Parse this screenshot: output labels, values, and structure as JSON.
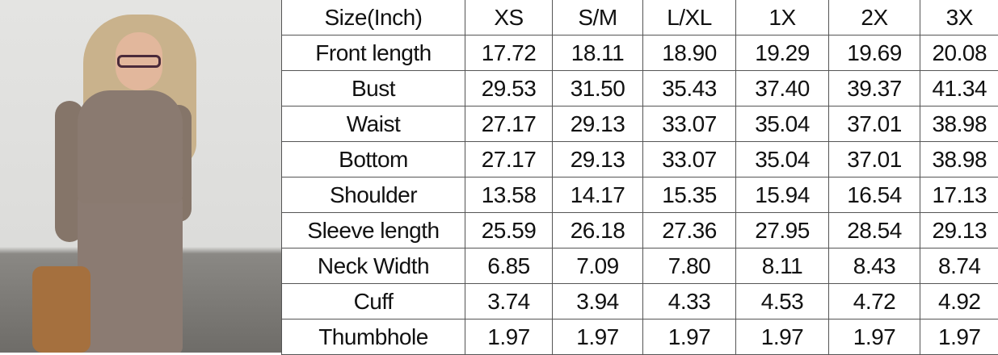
{
  "header": [
    "Size(Inch)",
    "XS",
    "S/M",
    "L/XL",
    "1X",
    "2X",
    "3X"
  ],
  "rows": [
    {
      "label": "Front length",
      "values": [
        "17.72",
        "18.11",
        "18.90",
        "19.29",
        "19.69",
        "20.08"
      ]
    },
    {
      "label": "Bust",
      "values": [
        "29.53",
        "31.50",
        "35.43",
        "37.40",
        "39.37",
        "41.34"
      ]
    },
    {
      "label": "Waist",
      "values": [
        "27.17",
        "29.13",
        "33.07",
        "35.04",
        "37.01",
        "38.98"
      ]
    },
    {
      "label": "Bottom",
      "values": [
        "27.17",
        "29.13",
        "33.07",
        "35.04",
        "37.01",
        "38.98"
      ]
    },
    {
      "label": "Shoulder",
      "values": [
        "13.58",
        "14.17",
        "15.35",
        "15.94",
        "16.54",
        "17.13"
      ]
    },
    {
      "label": "Sleeve length",
      "values": [
        "25.59",
        "26.18",
        "27.36",
        "27.95",
        "28.54",
        "29.13"
      ]
    },
    {
      "label": "Neck Width",
      "values": [
        "6.85",
        "7.09",
        "7.80",
        "8.11",
        "8.43",
        "8.74"
      ]
    },
    {
      "label": "Cuff",
      "values": [
        "3.74",
        "3.94",
        "4.33",
        "4.53",
        "4.72",
        "4.92"
      ]
    },
    {
      "label": "Thumbhole",
      "values": [
        "1.97",
        "1.97",
        "1.97",
        "1.97",
        "1.97",
        "1.97"
      ]
    }
  ]
}
